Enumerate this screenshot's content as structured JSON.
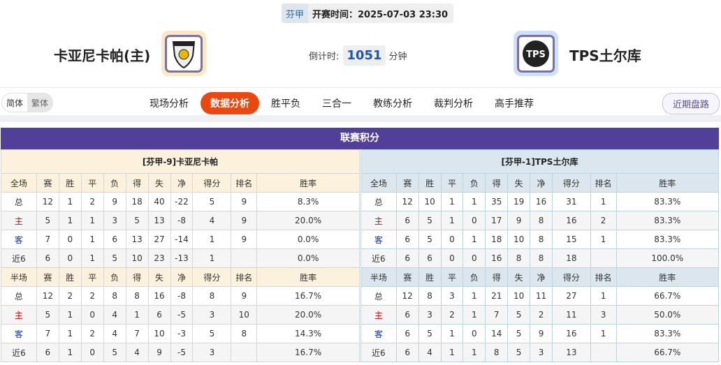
{
  "match": {
    "league": "芬甲",
    "kickoff": "开赛时间：2025-07-03 23:30",
    "countdown_label": "倒计时:",
    "countdown_value": "1051",
    "countdown_unit": "分钟"
  },
  "home": {
    "name": "卡亚尼卡帕(主)",
    "logo_color": "#fde8c4"
  },
  "away": {
    "name": "TPS土尔库",
    "logo_color": "#cfe0fb"
  },
  "nav": {
    "lang": [
      "简体",
      "繁体"
    ],
    "tabs": [
      "现场分析",
      "数据分析",
      "胜平负",
      "三合一",
      "教练分析",
      "裁判分析",
      "高手推荐"
    ],
    "active": 1,
    "recent": "近期盘路"
  },
  "standings": {
    "title": "联赛积分",
    "cols": [
      "赛",
      "胜",
      "平",
      "负",
      "得",
      "失",
      "净",
      "得分",
      "排名",
      "胜率"
    ],
    "full_label": "全场",
    "half_label": "半场",
    "left": {
      "header": "[芬甲-9]卡亚尼卡帕",
      "full": [
        [
          "总",
          "12",
          "1",
          "2",
          "9",
          "18",
          "40",
          "-22",
          "5",
          "9",
          "8.3%"
        ],
        [
          "主",
          "5",
          "1",
          "1",
          "3",
          "5",
          "13",
          "-8",
          "4",
          "9",
          "20.0%"
        ],
        [
          "客",
          "7",
          "0",
          "1",
          "6",
          "13",
          "27",
          "-14",
          "1",
          "9",
          "0.0%"
        ],
        [
          "近6",
          "6",
          "0",
          "1",
          "5",
          "10",
          "23",
          "-13",
          "1",
          "",
          "0.0%"
        ]
      ],
      "half": [
        [
          "总",
          "12",
          "2",
          "2",
          "8",
          "8",
          "16",
          "-8",
          "8",
          "9",
          "16.7%"
        ],
        [
          "主",
          "5",
          "1",
          "0",
          "4",
          "1",
          "6",
          "-5",
          "3",
          "10",
          "20.0%"
        ],
        [
          "客",
          "7",
          "1",
          "2",
          "4",
          "7",
          "10",
          "-3",
          "5",
          "8",
          "14.3%"
        ],
        [
          "近6",
          "6",
          "1",
          "0",
          "5",
          "4",
          "9",
          "-5",
          "3",
          "",
          "16.7%"
        ]
      ]
    },
    "right": {
      "header": "[芬甲-1]TPS土尔库",
      "full": [
        [
          "总",
          "12",
          "10",
          "1",
          "1",
          "35",
          "19",
          "16",
          "31",
          "1",
          "83.3%"
        ],
        [
          "主",
          "6",
          "5",
          "1",
          "0",
          "17",
          "9",
          "8",
          "16",
          "2",
          "83.3%"
        ],
        [
          "客",
          "6",
          "5",
          "0",
          "1",
          "18",
          "10",
          "8",
          "15",
          "1",
          "83.3%"
        ],
        [
          "近6",
          "6",
          "6",
          "0",
          "0",
          "16",
          "8",
          "8",
          "18",
          "",
          "100.0%"
        ]
      ],
      "half": [
        [
          "总",
          "12",
          "8",
          "3",
          "1",
          "21",
          "10",
          "11",
          "27",
          "1",
          "66.7%"
        ],
        [
          "主",
          "6",
          "3",
          "2",
          "1",
          "7",
          "5",
          "2",
          "11",
          "3",
          "50.0%"
        ],
        [
          "客",
          "6",
          "5",
          "1",
          "0",
          "14",
          "5",
          "9",
          "16",
          "1",
          "83.3%"
        ],
        [
          "近6",
          "6",
          "4",
          "1",
          "1",
          "8",
          "5",
          "3",
          "13",
          "",
          "66.7%"
        ]
      ]
    }
  }
}
